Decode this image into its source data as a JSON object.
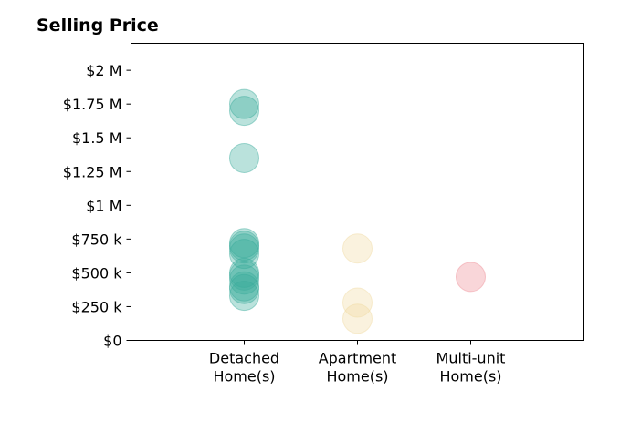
{
  "chart_data": {
    "type": "scatter",
    "title": "Selling Price",
    "xlabel": "",
    "ylabel": "",
    "categories": [
      [
        "Detached",
        "Home(s)"
      ],
      [
        "Apartment",
        "Home(s)"
      ],
      [
        "Multi-unit",
        "Home(s)"
      ]
    ],
    "y_ticks": [
      {
        "value": 0,
        "label": "$0"
      },
      {
        "value": 250000,
        "label": "$250 k"
      },
      {
        "value": 500000,
        "label": "$500 k"
      },
      {
        "value": 750000,
        "label": "$750 k"
      },
      {
        "value": 1000000,
        "label": "$1 M"
      },
      {
        "value": 1250000,
        "label": "$1.25 M"
      },
      {
        "value": 1500000,
        "label": "$1.5 M"
      },
      {
        "value": 1750000,
        "label": "$1.75 M"
      },
      {
        "value": 2000000,
        "label": "$2 M"
      }
    ],
    "ylim": [
      0,
      2200000
    ],
    "xlim": [
      -1,
      3
    ],
    "grid": false,
    "series": [
      {
        "color": "#3aab9b",
        "category_index": 0,
        "values": [
          1750000,
          1700000,
          1350000,
          720000,
          700000,
          680000,
          640000,
          500000,
          480000,
          450000,
          400000,
          380000,
          330000
        ]
      },
      {
        "color": "#f0d9a0",
        "category_index": 1,
        "values": [
          680000,
          280000,
          160000
        ]
      },
      {
        "color": "#ee8a92",
        "category_index": 2,
        "values": [
          470000
        ]
      }
    ]
  }
}
